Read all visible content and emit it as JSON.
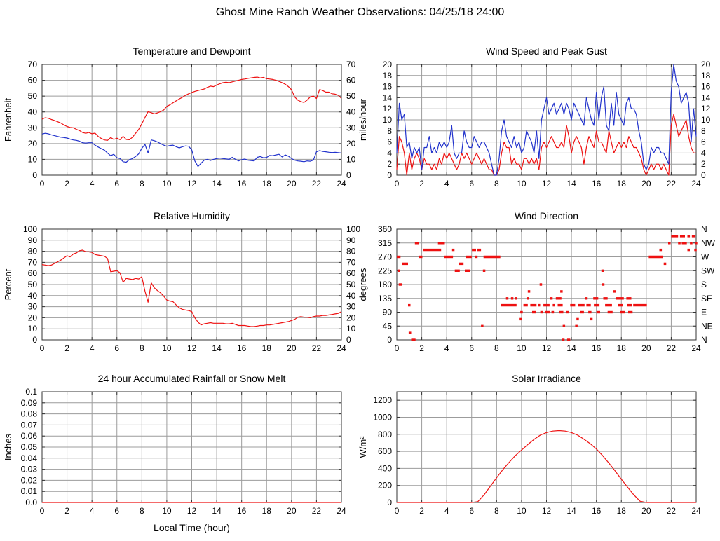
{
  "page_title": "Ghost Mine Ranch Weather Observations: 04/25/18 24:00",
  "colors": {
    "series_red": "#ee1111",
    "series_blue": "#2233cc",
    "grid": "#9c9c9c",
    "axis": "#333333",
    "background": "#ffffff",
    "text": "#000000"
  },
  "x_axis": {
    "min": 0,
    "max": 24,
    "tick": 2
  },
  "chart_data": [
    {
      "type": "line",
      "title": "Temperature and Dewpoint",
      "ylabel": "Fahrenheit",
      "ylim": [
        0,
        70
      ],
      "ytick": 10,
      "right_labels": "mirror",
      "series": [
        {
          "name": "temperature",
          "color": "#ee1111",
          "x0": 0,
          "dx": 0.25,
          "y": [
            35.5,
            36.3,
            36,
            35.2,
            34.6,
            33.8,
            33,
            31.8,
            30.8,
            30.2,
            30,
            29,
            28.2,
            27,
            26.5,
            27,
            26.2,
            26.6,
            24.5,
            23.2,
            22.3,
            22,
            23.8,
            22.6,
            23.4,
            22.4,
            24.6,
            22.6,
            22.4,
            24,
            26.5,
            29,
            32.5,
            36.5,
            40.2,
            39.5,
            38.8,
            39.4,
            40.2,
            41.2,
            43.5,
            44.5,
            45.8,
            47,
            48.2,
            49.2,
            50.5,
            51.5,
            52.3,
            53,
            53.5,
            54,
            54.5,
            55.5,
            56.3,
            56,
            57,
            57.8,
            58.5,
            58.8,
            58.5,
            59,
            59.5,
            60,
            60.5,
            60.8,
            61.2,
            61.5,
            61.8,
            62,
            61.5,
            61.8,
            61,
            60.8,
            60.5,
            60,
            59.3,
            58.5,
            57.5,
            56,
            54,
            49.5,
            47.5,
            46.5,
            46,
            47.5,
            49.5,
            50,
            48.5,
            54.2,
            53.5,
            52.5,
            52.5,
            51.5,
            51.2,
            50.5,
            48.5
          ]
        },
        {
          "name": "dewpoint",
          "color": "#2233cc",
          "x0": 0,
          "dx": 0.25,
          "y": [
            26,
            26.5,
            26.2,
            25.5,
            25,
            24.5,
            24,
            23.8,
            23.5,
            22.8,
            22.3,
            22,
            21.5,
            20.5,
            20.3,
            20.5,
            20.5,
            19,
            17.8,
            16.8,
            15.8,
            14,
            12.3,
            13.2,
            11,
            10.5,
            8.5,
            8.2,
            9.8,
            10.5,
            11.8,
            13.5,
            17,
            19.5,
            14,
            22.3,
            21.8,
            21,
            20,
            19,
            18.3,
            18.8,
            19,
            18,
            17.3,
            18,
            18.5,
            18.3,
            16,
            9,
            5.5,
            7.5,
            9.5,
            10,
            9.3,
            10,
            10.5,
            10.8,
            10.5,
            10.3,
            10,
            11.3,
            10,
            9,
            9.8,
            10.2,
            9.5,
            9.2,
            9,
            11.3,
            11.8,
            11,
            11.2,
            12.5,
            12.3,
            12.8,
            13.2,
            11.5,
            12.8,
            12,
            10.5,
            9.5,
            9,
            8.8,
            8.5,
            9,
            8.8,
            9.5,
            14.8,
            15.5,
            15,
            14.8,
            14.5,
            14.3,
            14.5,
            14.2,
            14
          ]
        }
      ]
    },
    {
      "type": "line",
      "title": "Wind Speed and Peak Gust",
      "ylabel": "miles/hour",
      "ylim": [
        0,
        20
      ],
      "ytick": 2,
      "right_labels": "mirror",
      "series": [
        {
          "name": "wind-speed",
          "color": "#ee1111",
          "x0": 0,
          "dx": 0.2,
          "y": [
            1,
            7,
            6,
            4,
            0,
            4,
            1,
            3,
            4,
            3,
            1,
            3,
            2,
            2,
            1,
            2,
            1,
            3,
            2,
            4,
            3,
            4,
            3,
            2,
            1,
            2,
            4,
            3,
            4,
            3,
            2,
            3,
            4,
            3,
            2,
            3,
            2,
            1,
            1,
            0,
            0,
            1,
            4,
            6,
            5,
            5,
            2,
            3,
            2,
            2,
            1,
            3,
            3,
            2,
            3,
            2,
            3,
            1,
            5,
            6,
            5,
            6,
            7,
            6,
            5,
            5,
            6,
            5,
            9,
            7,
            4,
            6,
            7,
            6,
            5,
            2,
            5,
            7,
            6,
            5,
            8,
            6,
            6,
            5,
            4,
            8,
            6,
            4,
            5,
            6,
            5,
            6,
            5,
            7,
            6,
            5,
            5,
            4,
            3,
            1,
            0,
            1,
            2,
            1,
            2,
            2,
            1,
            2,
            1,
            0,
            9,
            11,
            9,
            7,
            8,
            9,
            10,
            7,
            5,
            4,
            4
          ]
        },
        {
          "name": "peak-gust",
          "color": "#2233cc",
          "x0": 0,
          "dx": 0.2,
          "y": [
            4,
            13,
            10,
            11,
            5,
            6,
            3,
            5,
            4,
            5,
            1,
            5,
            5,
            7,
            4,
            5,
            4,
            6,
            5,
            6,
            5,
            6,
            9,
            4,
            3,
            4,
            4,
            8,
            6,
            5,
            5,
            7,
            6,
            5,
            6,
            6,
            5,
            4,
            2,
            0,
            0,
            3,
            8,
            10,
            7,
            6,
            5,
            7,
            5,
            6,
            4,
            5,
            8,
            7,
            6,
            4,
            8,
            3,
            10,
            12,
            14,
            11,
            12,
            13,
            11,
            12,
            13,
            11,
            13,
            12,
            10,
            13,
            12,
            11,
            10,
            9,
            14,
            12,
            10,
            9,
            15,
            10,
            14,
            16,
            9,
            8,
            13,
            9,
            15,
            11,
            10,
            9,
            13,
            14,
            12,
            12,
            11,
            8,
            6,
            2,
            1,
            2,
            5,
            4,
            5,
            5,
            4,
            4,
            3,
            2,
            15,
            20,
            17,
            16,
            13,
            14,
            15,
            13,
            6,
            12,
            7
          ]
        }
      ]
    },
    {
      "type": "line",
      "title": "Relative Humidity",
      "ylabel": "Percent",
      "ylim": [
        0,
        100
      ],
      "ytick": 10,
      "right_labels": "mirror",
      "series": [
        {
          "name": "relative-humidity",
          "color": "#ee1111",
          "x0": 0,
          "dx": 0.25,
          "y": [
            68,
            67.5,
            67,
            67.5,
            69,
            70.5,
            72,
            74,
            76,
            75,
            77.5,
            78.5,
            80.5,
            81,
            79.5,
            79.5,
            79,
            77,
            76.5,
            76,
            75.5,
            73.5,
            61.5,
            62,
            62.5,
            60.5,
            52,
            55.5,
            55,
            54.5,
            55.5,
            55,
            57,
            44,
            34,
            51.5,
            47,
            44.5,
            42.5,
            39.5,
            36,
            35,
            34.5,
            31.5,
            29,
            27.5,
            27,
            26.5,
            25.5,
            20,
            16,
            13.5,
            14.5,
            15,
            15.5,
            15,
            15,
            15,
            15,
            14.5,
            14.5,
            15,
            14,
            13,
            13,
            13,
            12.5,
            12,
            12,
            12.5,
            13,
            13,
            13.5,
            13.5,
            14,
            14.5,
            15,
            15.5,
            16,
            16.5,
            17.5,
            18.5,
            20.5,
            21,
            20.5,
            20.5,
            20,
            21,
            21.5,
            21.5,
            22,
            22,
            22.5,
            23,
            23.5,
            24,
            25.5
          ]
        }
      ]
    },
    {
      "type": "scatter",
      "title": "Wind Direction",
      "ylabel": "degrees",
      "ylim": [
        0,
        360
      ],
      "ytick": 45,
      "right_labels": [
        "N",
        "NE",
        "E",
        "SE",
        "S",
        "SW",
        "W",
        "NW",
        "N"
      ],
      "marker_color": "#ee1111",
      "segments": [
        [
          0.0,
          0.3,
          270
        ],
        [
          0.05,
          0.2,
          225
        ],
        [
          0.15,
          0.45,
          180
        ],
        [
          0.45,
          0.9,
          247.5
        ],
        [
          0.9,
          1.05,
          112.5
        ],
        [
          0.95,
          1.15,
          22.5
        ],
        [
          1.15,
          1.5,
          0
        ],
        [
          1.45,
          1.8,
          315
        ],
        [
          1.75,
          2.05,
          270
        ],
        [
          2.1,
          3.55,
          292.5
        ],
        [
          3.3,
          3.85,
          315
        ],
        [
          3.8,
          4.5,
          270
        ],
        [
          4.43,
          4.6,
          292.5
        ],
        [
          4.65,
          5.05,
          225
        ],
        [
          5.0,
          5.35,
          247.5
        ],
        [
          5.45,
          5.9,
          225
        ],
        [
          5.55,
          6.0,
          270
        ],
        [
          6.02,
          6.35,
          292.5
        ],
        [
          6.28,
          6.38,
          270
        ],
        [
          6.45,
          6.75,
          292.5
        ],
        [
          6.75,
          6.9,
          45
        ],
        [
          6.9,
          7.0,
          225
        ],
        [
          6.95,
          8.3,
          270
        ],
        [
          8.35,
          9.6,
          112.5
        ],
        [
          8.75,
          8.9,
          135
        ],
        [
          9.15,
          9.3,
          135
        ],
        [
          9.45,
          9.55,
          135
        ],
        [
          9.85,
          10.05,
          67.5
        ],
        [
          9.9,
          10.1,
          90
        ],
        [
          10.15,
          10.5,
          112.5
        ],
        [
          10.4,
          10.55,
          135
        ],
        [
          10.5,
          10.65,
          157.5
        ],
        [
          10.7,
          11.2,
          112.5
        ],
        [
          10.85,
          11.15,
          90
        ],
        [
          11.3,
          11.45,
          112.5
        ],
        [
          11.45,
          11.6,
          180
        ],
        [
          11.5,
          11.7,
          90
        ],
        [
          11.75,
          12.25,
          112.5
        ],
        [
          11.9,
          12.3,
          90
        ],
        [
          12.3,
          12.45,
          135
        ],
        [
          12.4,
          12.6,
          90
        ],
        [
          12.5,
          12.7,
          112.5
        ],
        [
          12.75,
          13.2,
          135
        ],
        [
          12.9,
          13.3,
          112.5
        ],
        [
          13.0,
          13.35,
          90
        ],
        [
          13.1,
          13.25,
          157.5
        ],
        [
          13.3,
          13.4,
          45
        ],
        [
          13.25,
          13.45,
          0
        ],
        [
          13.6,
          13.8,
          90
        ],
        [
          13.65,
          13.9,
          0
        ],
        [
          13.9,
          14.3,
          112.5
        ],
        [
          14.3,
          14.45,
          45
        ],
        [
          14.4,
          14.5,
          67.5
        ],
        [
          14.55,
          15.05,
          112.5
        ],
        [
          14.7,
          15.0,
          90
        ],
        [
          15.1,
          15.3,
          135
        ],
        [
          15.2,
          15.55,
          112.5
        ],
        [
          15.35,
          15.6,
          90
        ],
        [
          15.5,
          15.65,
          67.5
        ],
        [
          15.75,
          16.15,
          135
        ],
        [
          15.8,
          16.25,
          112.5
        ],
        [
          16.0,
          16.3,
          90
        ],
        [
          16.4,
          16.55,
          225
        ],
        [
          16.45,
          16.6,
          180
        ],
        [
          16.55,
          16.9,
          135
        ],
        [
          16.7,
          17.25,
          112.5
        ],
        [
          16.9,
          17.3,
          90
        ],
        [
          17.35,
          17.5,
          157.5
        ],
        [
          17.55,
          17.7,
          135
        ],
        [
          17.7,
          18.2,
          135
        ],
        [
          17.75,
          18.15,
          112.5
        ],
        [
          17.9,
          18.3,
          90
        ],
        [
          18.4,
          18.8,
          135
        ],
        [
          18.45,
          18.85,
          112.5
        ],
        [
          18.55,
          18.9,
          90
        ],
        [
          18.95,
          20.05,
          112.5
        ],
        [
          20.2,
          21.35,
          270
        ],
        [
          21.05,
          21.25,
          292.5
        ],
        [
          21.4,
          21.6,
          247.5
        ],
        [
          21.75,
          21.95,
          315
        ],
        [
          22.0,
          22.55,
          337.5
        ],
        [
          22.7,
          23.1,
          337.5
        ],
        [
          23.3,
          23.5,
          337.5
        ],
        [
          23.65,
          23.95,
          337.5
        ],
        [
          22.55,
          22.75,
          315
        ],
        [
          22.85,
          23.25,
          315
        ],
        [
          23.5,
          23.7,
          315
        ],
        [
          23.9,
          24.0,
          315
        ],
        [
          23.3,
          23.4,
          292.5
        ],
        [
          23.85,
          23.95,
          292.5
        ]
      ]
    },
    {
      "type": "line",
      "title": "24 hour Accumulated Rainfall or Snow Melt",
      "ylabel": "Inches",
      "xlabel": "Local Time (hour)",
      "ylim": [
        0,
        0.1
      ],
      "ytick": 0.01,
      "yticklabels": [
        "0.0",
        "0.01",
        "0.02",
        "0.03",
        "0.04",
        "0.05",
        "0.06",
        "0.07",
        "0.08",
        "0.09",
        "0.1"
      ],
      "right_labels": null,
      "series": [
        {
          "name": "rainfall",
          "color": "#ee1111",
          "x0": 0,
          "dx": 24,
          "y": [
            0,
            0
          ]
        }
      ]
    },
    {
      "type": "line",
      "title": "Solar Irradiance",
      "ylabel": "W/m²",
      "ylim": [
        0,
        1300
      ],
      "ytick": 200,
      "right_labels": null,
      "series": [
        {
          "name": "solar-irradiance",
          "color": "#ee1111",
          "x0": 0,
          "dx": 0.5,
          "y": [
            0,
            0,
            0,
            0,
            0,
            0,
            0,
            0,
            0,
            0,
            0,
            0,
            0,
            10,
            90,
            190,
            290,
            385,
            470,
            550,
            615,
            680,
            740,
            790,
            820,
            838,
            843,
            838,
            820,
            790,
            742,
            690,
            628,
            550,
            462,
            370,
            272,
            180,
            90,
            15,
            0,
            0,
            0,
            0,
            0,
            0,
            0,
            0,
            0
          ]
        }
      ]
    }
  ]
}
